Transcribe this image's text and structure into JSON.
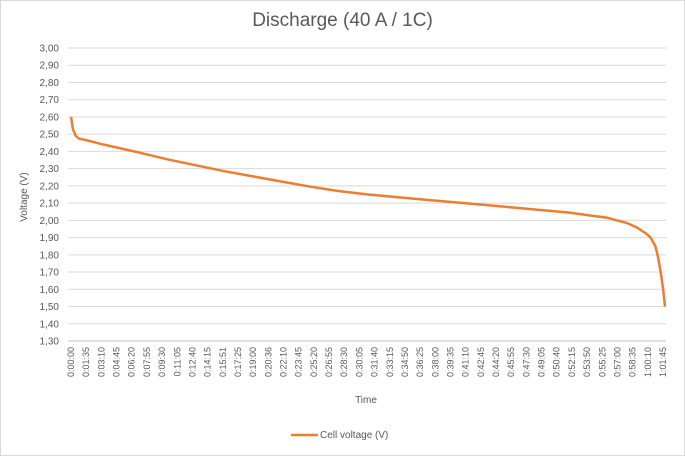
{
  "chart_data": {
    "type": "line",
    "title": "Discharge (40 A / 1C)",
    "xlabel": "Time",
    "ylabel": "Voltage (V)",
    "ylim": [
      1.3,
      3.0
    ],
    "y_ticks": [
      "1,30",
      "1,40",
      "1,50",
      "1,60",
      "1,70",
      "1,80",
      "1,90",
      "2,00",
      "2,10",
      "2,20",
      "2,30",
      "2,40",
      "2,50",
      "2,60",
      "2,70",
      "2,80",
      "2,90",
      "3,00"
    ],
    "x_tick_labels": [
      "0:00:00",
      "0:01:35",
      "0:03:10",
      "0:04:45",
      "0:06:20",
      "0:07:55",
      "0:09:30",
      "0:11:05",
      "0:12:40",
      "0:14:15",
      "0:15:51",
      "0:17:25",
      "0:19:00",
      "0:20:36",
      "0:22:10",
      "0:23:45",
      "0:25:20",
      "0:26:55",
      "0:28:30",
      "0:30:05",
      "0:31:40",
      "0:33:15",
      "0:34:50",
      "0:36:25",
      "0:38:00",
      "0:39:35",
      "0:41:10",
      "0:42:45",
      "0:44:20",
      "0:45:55",
      "0:47:30",
      "0:49:05",
      "0:50:40",
      "0:52:15",
      "0:53:50",
      "0:55:25",
      "0:57:00",
      "0:58:35",
      "1:00:10",
      "1:01:45"
    ],
    "grid": true,
    "legend_position": "bottom",
    "series": [
      {
        "name": "Cell voltage (V)",
        "color": "#ed7d31",
        "x_minutes": [
          0,
          0.2,
          0.5,
          0.8,
          1.2,
          2,
          3,
          5,
          7,
          10,
          13,
          16,
          19,
          22,
          25,
          28,
          31,
          34,
          37,
          40,
          43,
          46,
          49,
          52,
          54,
          56,
          57,
          58,
          59,
          60,
          60.5,
          61,
          61.3,
          61.6,
          61.8,
          62
        ],
        "values": [
          2.6,
          2.53,
          2.49,
          2.475,
          2.47,
          2.46,
          2.445,
          2.42,
          2.395,
          2.355,
          2.32,
          2.285,
          2.255,
          2.225,
          2.195,
          2.17,
          2.15,
          2.135,
          2.12,
          2.105,
          2.09,
          2.075,
          2.06,
          2.045,
          2.03,
          2.015,
          2.0,
          1.985,
          1.96,
          1.925,
          1.9,
          1.85,
          1.78,
          1.68,
          1.6,
          1.5
        ]
      }
    ]
  }
}
